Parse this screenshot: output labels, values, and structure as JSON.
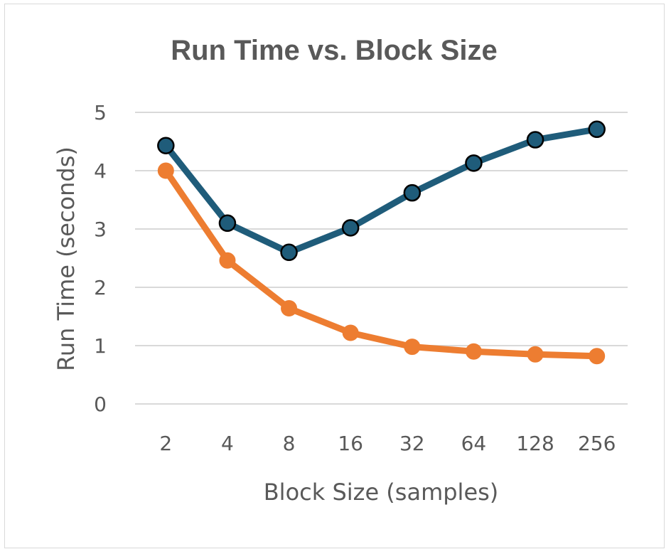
{
  "chart_data": {
    "type": "line",
    "title": "Run Time vs. Block Size",
    "xlabel": "Block Size (samples)",
    "ylabel": "Run Time (seconds)",
    "categories": [
      "2",
      "4",
      "8",
      "16",
      "32",
      "64",
      "128",
      "256"
    ],
    "yticks": [
      "0",
      "1",
      "2",
      "3",
      "4",
      "5"
    ],
    "ylim": [
      0,
      5
    ],
    "grid": "horizontal",
    "legend": "none",
    "series": [
      {
        "color": "#1f5c7a",
        "marker": "circle-outlined",
        "values": [
          4.43,
          3.1,
          2.6,
          3.02,
          3.62,
          4.13,
          4.53,
          4.71
        ]
      },
      {
        "color": "#ed7d31",
        "marker": "circle",
        "values": [
          4.0,
          2.46,
          1.64,
          1.22,
          0.98,
          0.9,
          0.85,
          0.82
        ]
      }
    ]
  }
}
